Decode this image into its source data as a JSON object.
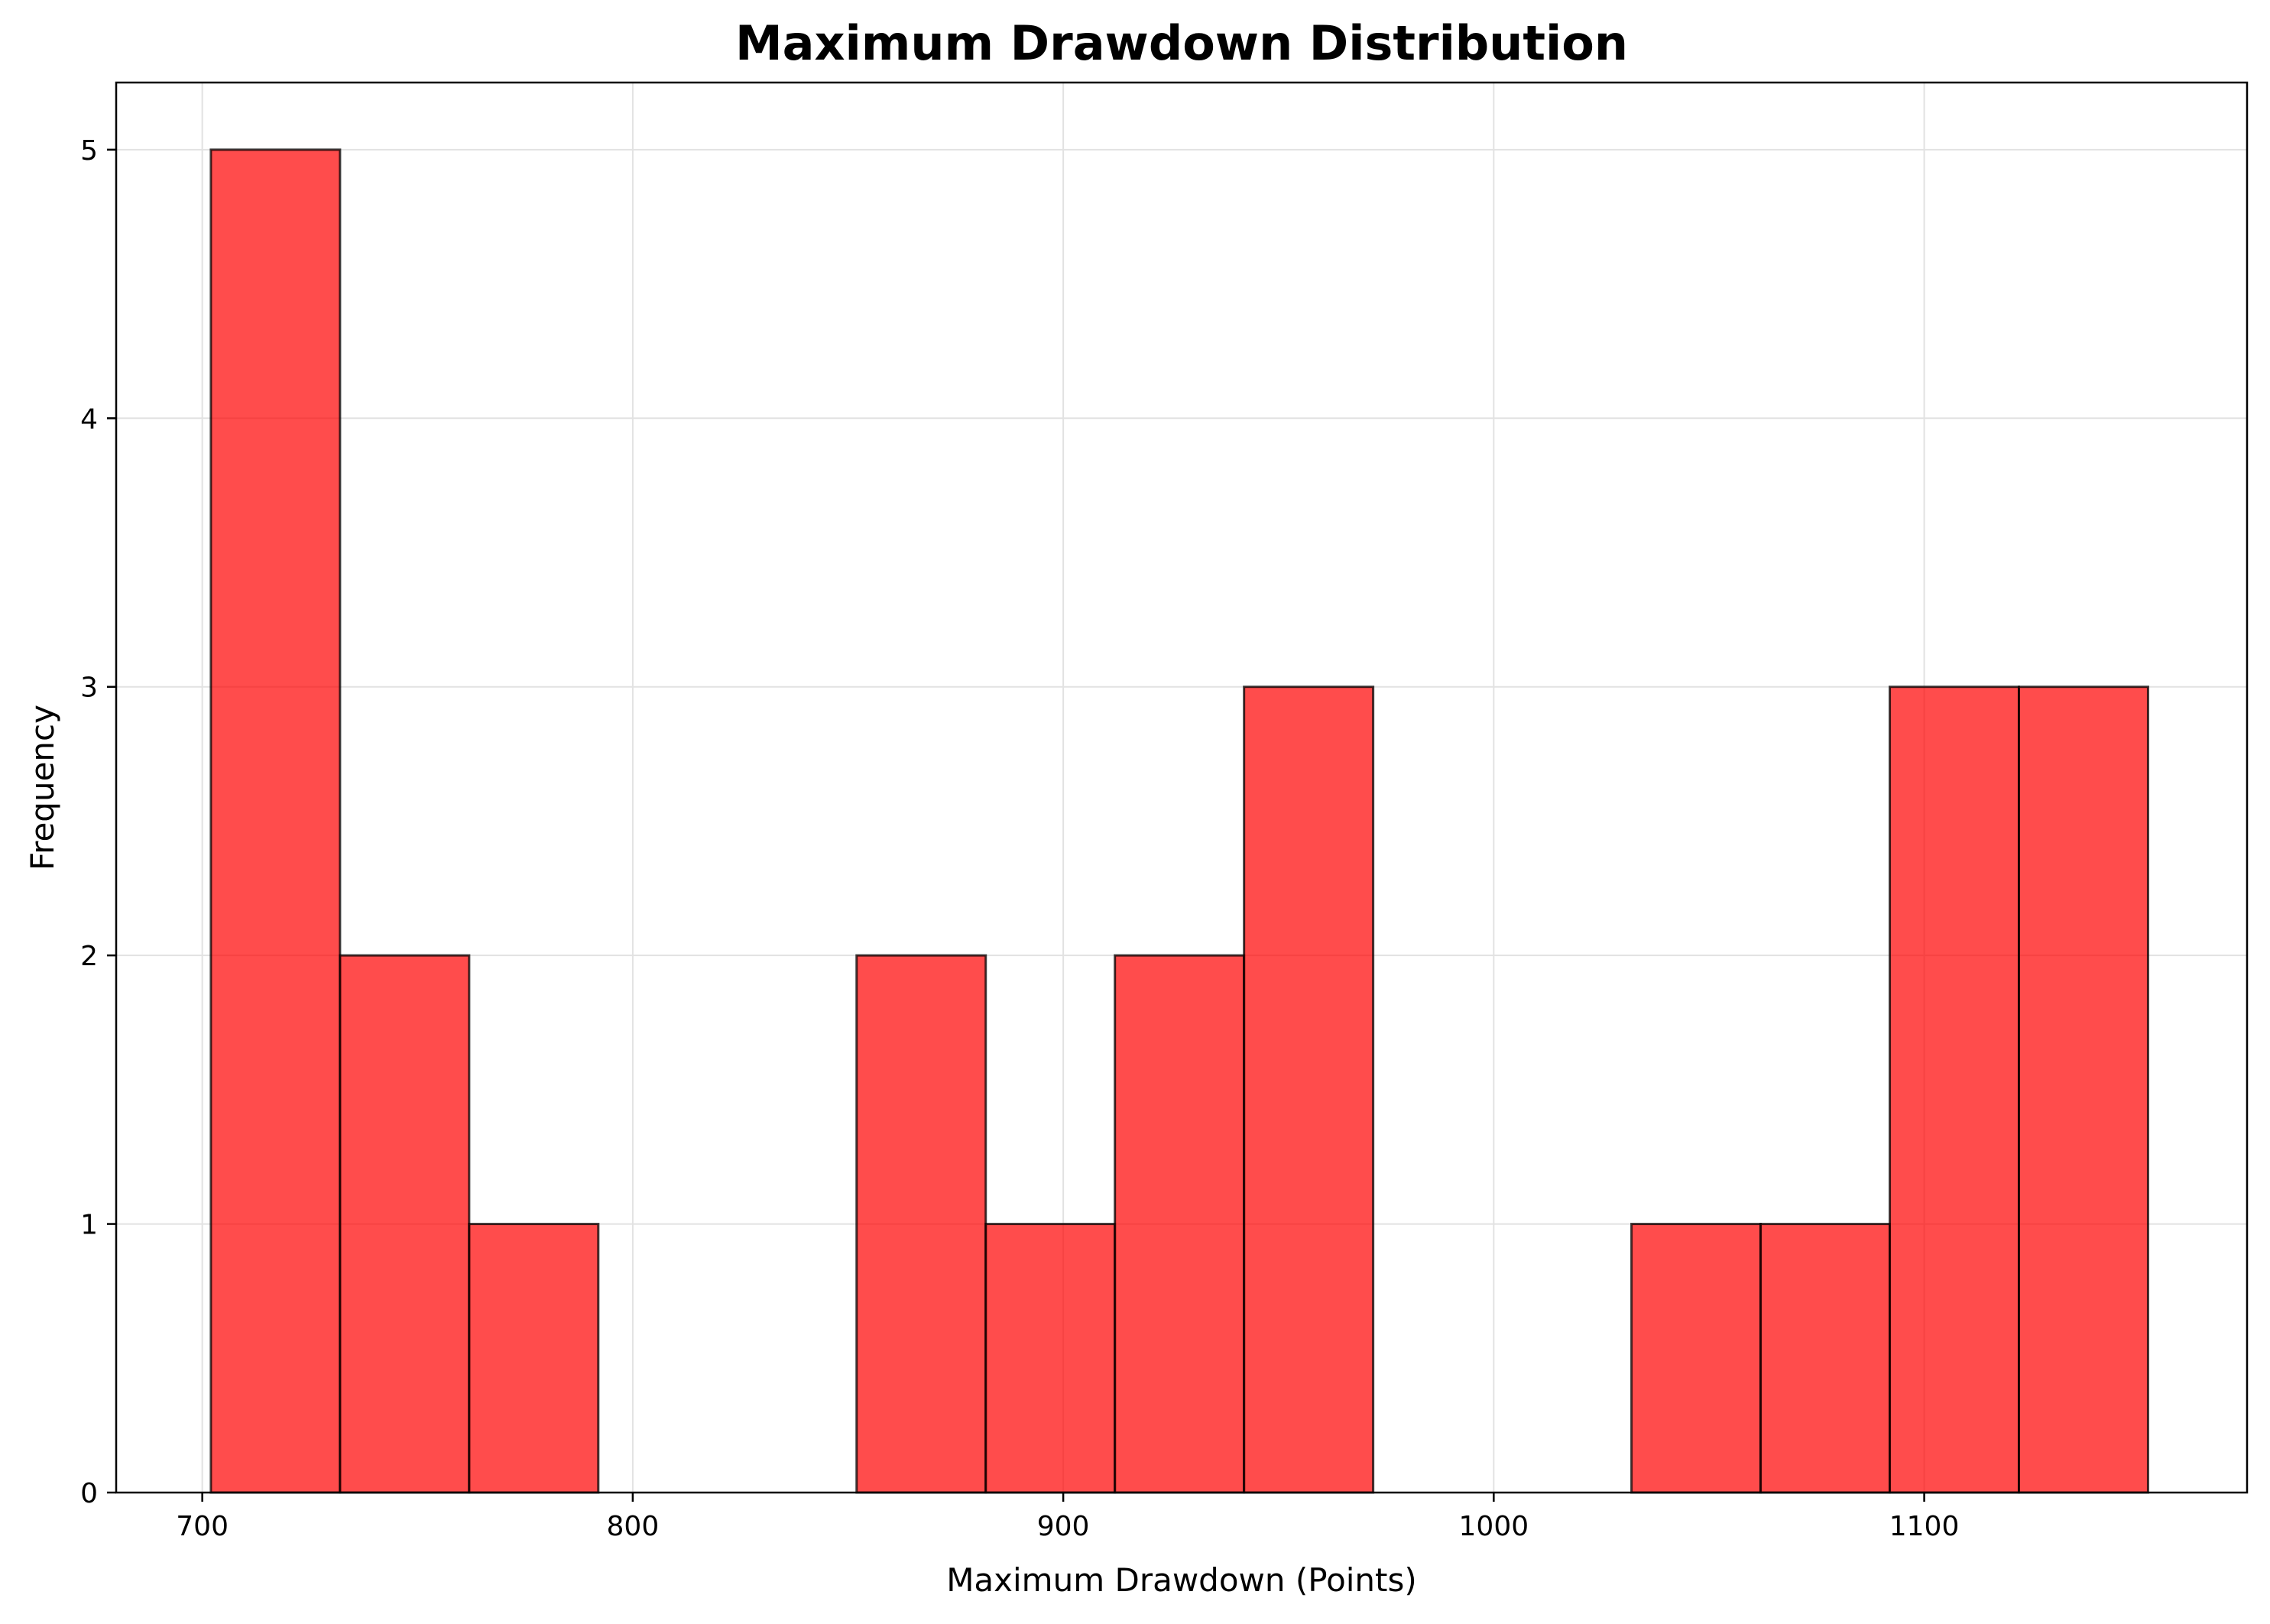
{
  "chart_data": {
    "type": "bar",
    "title": "Maximum Drawdown Distribution",
    "xlabel": "Maximum Drawdown (Points)",
    "ylabel": "Frequency",
    "xlim": [
      680,
      1175
    ],
    "ylim": [
      0,
      5.25
    ],
    "x_ticks": [
      700,
      800,
      900,
      1000,
      1100
    ],
    "y_ticks": [
      0,
      1,
      2,
      3,
      4,
      5
    ],
    "grid": true,
    "bar_color": "#ff0000",
    "bar_opacity": 0.7,
    "edge_color": "#000000",
    "bins": [
      {
        "start": 702,
        "end": 732,
        "count": 5
      },
      {
        "start": 732,
        "end": 762,
        "count": 2
      },
      {
        "start": 762,
        "end": 792,
        "count": 1
      },
      {
        "start": 792,
        "end": 822,
        "count": 0
      },
      {
        "start": 822,
        "end": 852,
        "count": 0
      },
      {
        "start": 852,
        "end": 882,
        "count": 2
      },
      {
        "start": 882,
        "end": 912,
        "count": 1
      },
      {
        "start": 912,
        "end": 942,
        "count": 2
      },
      {
        "start": 942,
        "end": 972,
        "count": 3
      },
      {
        "start": 972,
        "end": 1002,
        "count": 0
      },
      {
        "start": 1002,
        "end": 1032,
        "count": 0
      },
      {
        "start": 1032,
        "end": 1062,
        "count": 1
      },
      {
        "start": 1062,
        "end": 1092,
        "count": 1
      },
      {
        "start": 1092,
        "end": 1122,
        "count": 3
      },
      {
        "start": 1122,
        "end": 1152,
        "count": 3
      }
    ]
  }
}
